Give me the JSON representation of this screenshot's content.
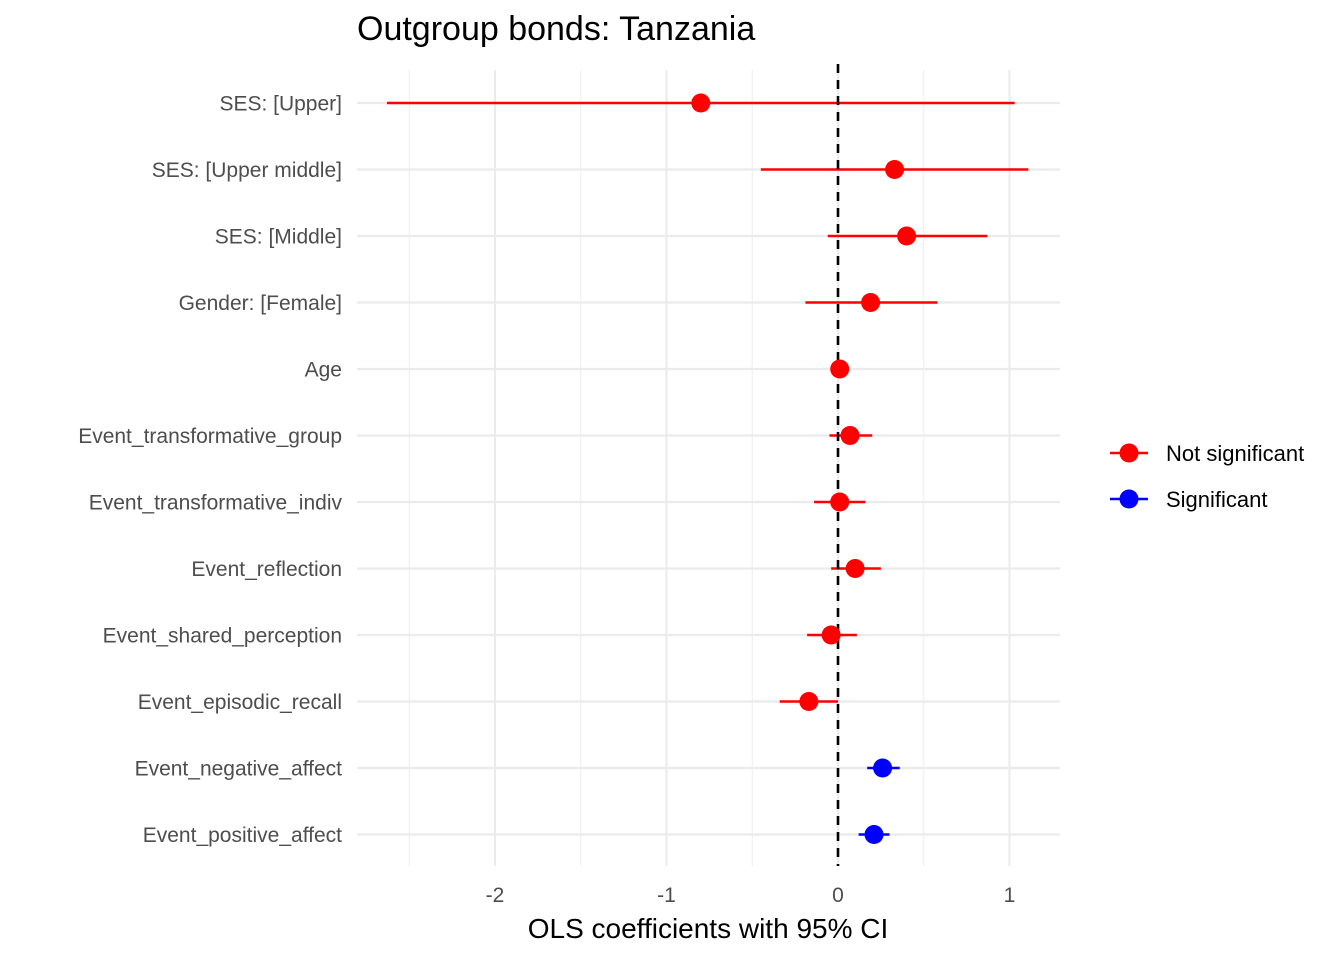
{
  "chart_data": {
    "type": "scatter",
    "title": "Outgroup bonds: Tanzania",
    "xlabel": "OLS coefficients with 95% CI",
    "ylabel": "",
    "xlim": [
      -2.65,
      1.3
    ],
    "x_ticks": [
      -2,
      -1,
      0,
      1
    ],
    "x_tick_labels": [
      "-2",
      "-1",
      "0",
      "1"
    ],
    "reference_line": 0,
    "grid": true,
    "legend_placement": "right",
    "categories": [
      "SES:  [Upper]",
      "SES:  [Upper middle]",
      "SES:  [Middle]",
      "Gender:  [Female]",
      "Age",
      "Event_transformative_group",
      "Event_transformative_indiv",
      "Event_reflection",
      "Event_shared_perception",
      "Event_episodic_recall",
      "Event_negative_affect",
      "Event_positive_affect"
    ],
    "estimates": [
      -0.8,
      0.33,
      0.4,
      0.19,
      0.01,
      0.07,
      0.01,
      0.1,
      -0.04,
      -0.17,
      0.26,
      0.21
    ],
    "ci_low": [
      -2.63,
      -0.45,
      -0.06,
      -0.19,
      -0.01,
      -0.05,
      -0.14,
      -0.04,
      -0.18,
      -0.34,
      0.17,
      0.12
    ],
    "ci_high": [
      1.03,
      1.11,
      0.87,
      0.58,
      0.03,
      0.2,
      0.16,
      0.25,
      0.11,
      0.0,
      0.36,
      0.3
    ],
    "status": [
      "Not significant",
      "Not significant",
      "Not significant",
      "Not significant",
      "Not significant",
      "Not significant",
      "Not significant",
      "Not significant",
      "Not significant",
      "Not significant",
      "Significant",
      "Significant"
    ],
    "legend": [
      {
        "name": "Not significant",
        "color": "#ff0000"
      },
      {
        "name": "Significant",
        "color": "#0000ff"
      }
    ]
  }
}
